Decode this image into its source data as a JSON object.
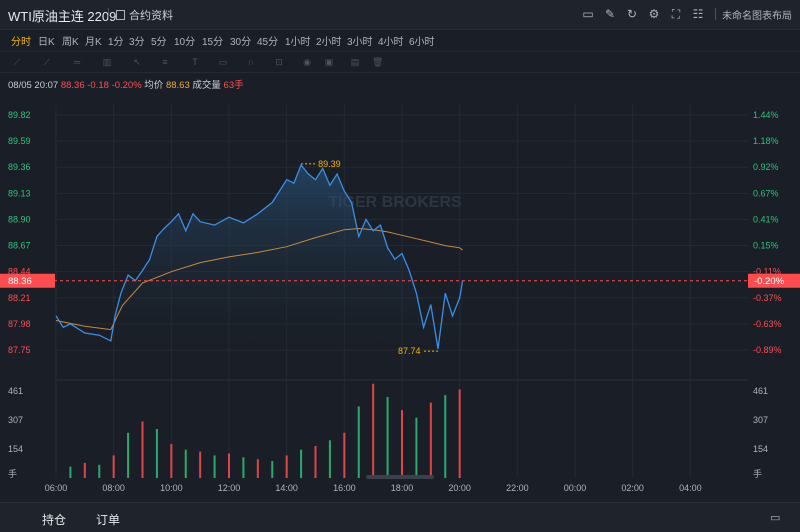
{
  "header": {
    "title": "WTI原油主连 2209",
    "contract_info": "合约资料",
    "layout_name": "未命名图表布局"
  },
  "timeframes": [
    "分时",
    "日K",
    "周K",
    "月K",
    "1分",
    "3分",
    "5分",
    "10分",
    "15分",
    "30分",
    "45分",
    "1小时",
    "2小时",
    "3小时",
    "4小时",
    "6小时"
  ],
  "active_timeframe": "分时",
  "quote": {
    "timestamp": "08/05 20:07",
    "price": "88.36",
    "change": "-0.18",
    "change_pct": "-0.20%",
    "avg_label": "均价",
    "avg_value": "88.63",
    "volume_label": "成交量",
    "volume_value": "63手"
  },
  "bottom_tabs": {
    "positions": "持仓",
    "orders": "订单"
  },
  "watermark": "TIGER BROKERS",
  "colors": {
    "accent": "#f4b400",
    "up": "#2fc27a",
    "down": "#ff4d4f",
    "price_line": "#3a8ee6",
    "avg_line": "#c98a3d"
  },
  "chart_data": {
    "type": "line",
    "x_ticks": [
      "06:00",
      "08:00",
      "10:00",
      "12:00",
      "14:00",
      "16:00",
      "18:00",
      "20:00",
      "22:00",
      "00:00",
      "02:00",
      "04:00"
    ],
    "y_left_ticks": [
      "89.82",
      "89.59",
      "89.36",
      "89.13",
      "88.90",
      "88.67",
      "88.44",
      "88.21",
      "87.98",
      "87.75"
    ],
    "y_right_ticks": [
      "1.44%",
      "1.18%",
      "0.92%",
      "0.67%",
      "0.41%",
      "0.15%",
      "-0.11%",
      "-0.37%",
      "-0.63%",
      "-0.89%"
    ],
    "ylim": [
      87.75,
      89.82
    ],
    "prev_close": 88.54,
    "current_price": "88.36",
    "current_pct": "-0.20%",
    "high_label": "89.39",
    "low_label": "87.74",
    "series": [
      {
        "name": "",
        "x": [
          6.0,
          6.25,
          6.5,
          7.0,
          7.5,
          7.9,
          8.05,
          8.25,
          8.5,
          8.75,
          9.0,
          9.25,
          9.5,
          9.75,
          10.0,
          10.25,
          10.5,
          10.75,
          11.0,
          11.5,
          12.0,
          12.5,
          13.0,
          13.5,
          14.0,
          14.25,
          14.5,
          14.75,
          15.0,
          15.25,
          15.5,
          15.75,
          16.0,
          16.25,
          16.5,
          16.75,
          17.0,
          17.25,
          17.5,
          17.75,
          18.0,
          18.25,
          18.5,
          18.75,
          19.0,
          19.25,
          19.5,
          19.75,
          20.0,
          20.1
        ],
        "values": [
          88.05,
          87.95,
          87.98,
          87.9,
          87.88,
          87.83,
          88.05,
          88.25,
          88.41,
          88.36,
          88.45,
          88.55,
          88.75,
          88.82,
          88.88,
          88.95,
          88.8,
          88.95,
          88.88,
          88.85,
          88.92,
          88.87,
          88.95,
          89.05,
          89.25,
          89.22,
          89.38,
          89.3,
          89.25,
          89.35,
          89.2,
          89.3,
          89.15,
          89.05,
          88.75,
          88.9,
          88.8,
          88.85,
          88.65,
          88.55,
          88.6,
          88.45,
          88.25,
          87.95,
          88.15,
          87.76,
          88.25,
          88.05,
          88.21,
          88.36
        ]
      },
      {
        "name": "",
        "x": [
          6.0,
          7.0,
          7.9,
          8.3,
          9.0,
          10.0,
          11.0,
          12.0,
          13.0,
          14.0,
          15.0,
          16.0,
          16.5,
          17.0,
          17.5,
          18.0,
          18.5,
          19.0,
          19.5,
          20.0,
          20.1
        ],
        "values": [
          88.01,
          87.96,
          87.93,
          88.14,
          88.34,
          88.44,
          88.52,
          88.57,
          88.61,
          88.66,
          88.74,
          88.81,
          88.82,
          88.81,
          88.79,
          88.76,
          88.73,
          88.7,
          88.67,
          88.65,
          88.63
        ]
      }
    ],
    "volume": {
      "y_ticks": [
        "461",
        "307",
        "154",
        "手"
      ],
      "ylim": [
        0,
        520
      ],
      "x": [
        6.5,
        7.0,
        7.5,
        8.0,
        8.5,
        9.0,
        9.5,
        10.0,
        10.5,
        11.0,
        11.5,
        12.0,
        12.5,
        13.0,
        13.5,
        14.0,
        14.5,
        15.0,
        15.5,
        16.0,
        16.5,
        17.0,
        17.5,
        18.0,
        18.5,
        19.0,
        19.5,
        20.0
      ],
      "values": [
        60,
        80,
        70,
        120,
        240,
        300,
        260,
        180,
        150,
        140,
        120,
        130,
        110,
        100,
        90,
        120,
        150,
        170,
        200,
        240,
        380,
        500,
        430,
        360,
        320,
        400,
        440,
        470
      ]
    }
  }
}
